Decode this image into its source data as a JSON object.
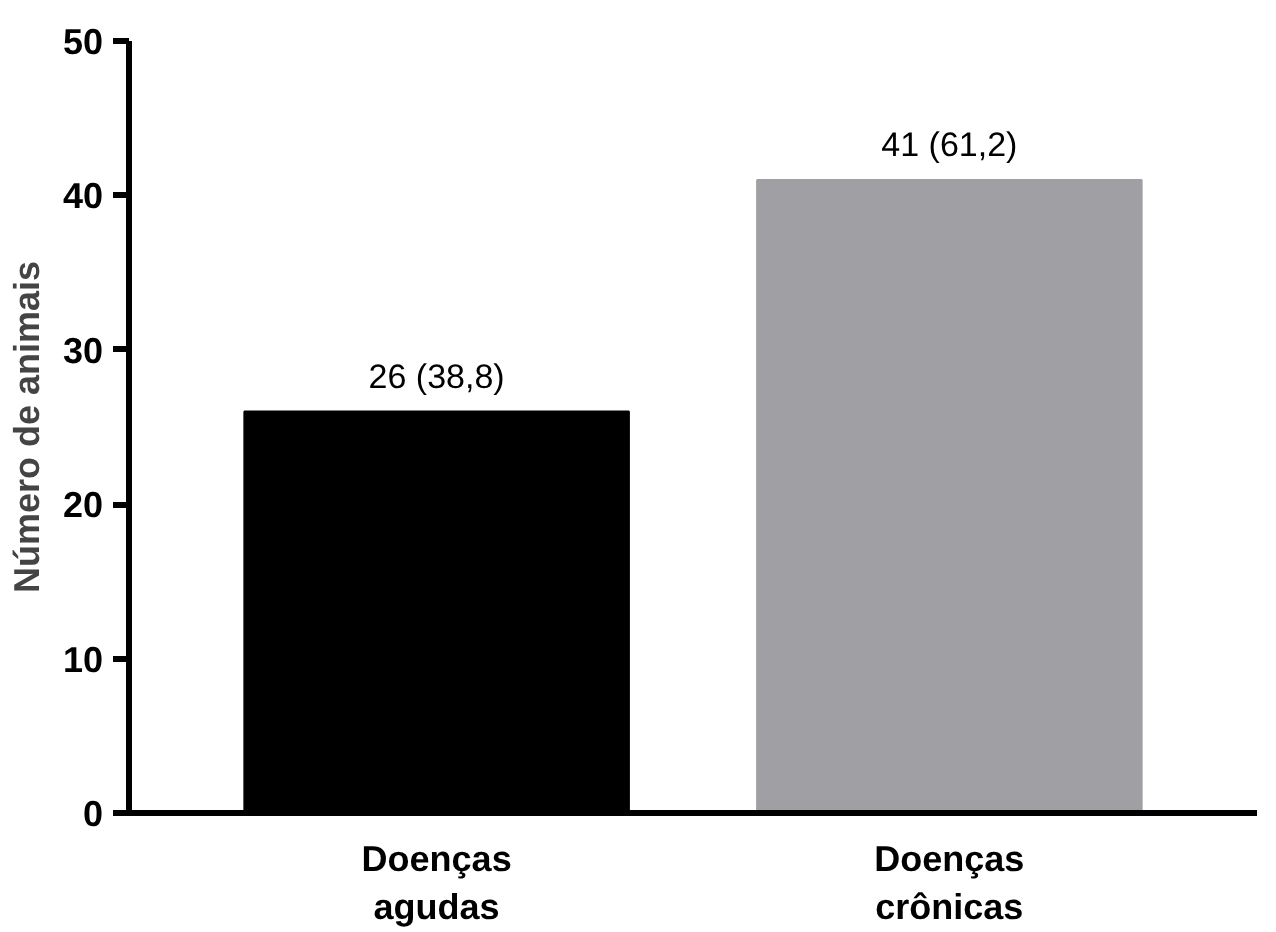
{
  "chart_data": {
    "type": "bar",
    "ylabel": "Número de animais",
    "categories": [
      "Doenças\nagudas",
      "Doenças\ncrônicas"
    ],
    "values": [
      26,
      41
    ],
    "colors": [
      "#000000",
      "#a0a0a4"
    ],
    "value_labels": [
      "26 (38,8)",
      "41 (61,2)"
    ],
    "ylim": [
      0,
      50
    ],
    "yticks": [
      0,
      10,
      20,
      30,
      40,
      50
    ],
    "grid": false
  }
}
